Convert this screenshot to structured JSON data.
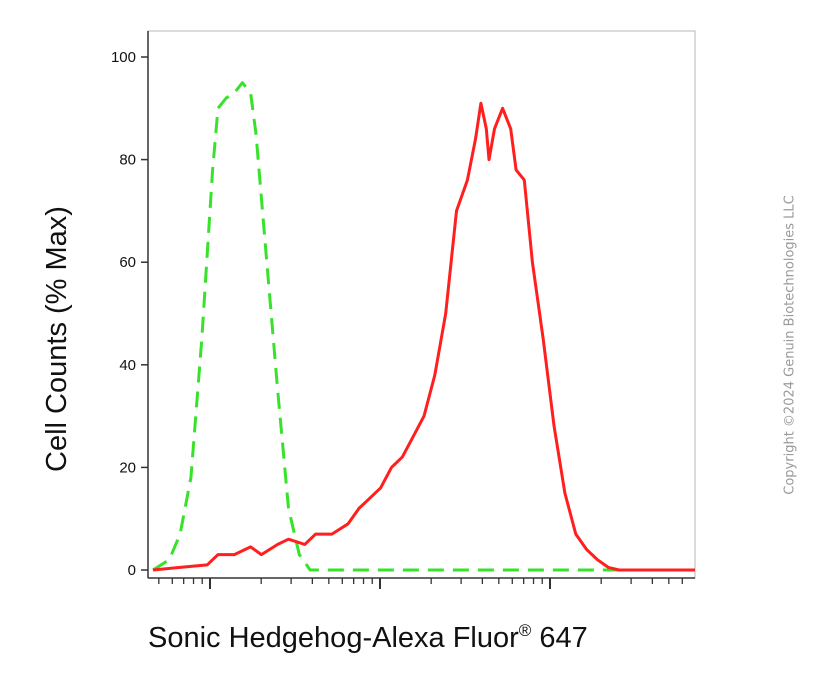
{
  "chart_data": {
    "type": "line",
    "title": "",
    "xlabel": "Sonic Hedgehog-Alexa Fluor",
    "xlabel_mark": "®",
    "xlabel_suffix": " 647",
    "ylabel": "Cell Counts (% Max)",
    "ylim": [
      0,
      100
    ],
    "yticks": [
      0,
      20,
      40,
      60,
      80,
      100
    ],
    "xscale": "log",
    "x_tick_labels": [],
    "grid": false,
    "series": [
      {
        "color": "#39e22a",
        "style": "dashed",
        "points": [
          [
            0.0,
            0
          ],
          [
            0.03,
            2
          ],
          [
            0.05,
            7
          ],
          [
            0.07,
            18
          ],
          [
            0.09,
            45
          ],
          [
            0.11,
            78
          ],
          [
            0.12,
            90
          ],
          [
            0.135,
            92
          ],
          [
            0.15,
            93
          ],
          [
            0.165,
            95
          ],
          [
            0.18,
            93
          ],
          [
            0.19,
            85
          ],
          [
            0.21,
            60
          ],
          [
            0.23,
            35
          ],
          [
            0.25,
            12
          ],
          [
            0.27,
            3
          ],
          [
            0.29,
            0
          ],
          [
            1.0,
            0
          ]
        ]
      },
      {
        "color": "#ff1f1f",
        "style": "solid",
        "points": [
          [
            0.0,
            0
          ],
          [
            0.05,
            0.5
          ],
          [
            0.1,
            1
          ],
          [
            0.12,
            3
          ],
          [
            0.15,
            3
          ],
          [
            0.18,
            4.5
          ],
          [
            0.2,
            3
          ],
          [
            0.23,
            5
          ],
          [
            0.25,
            6
          ],
          [
            0.28,
            5
          ],
          [
            0.3,
            7
          ],
          [
            0.33,
            7
          ],
          [
            0.36,
            9
          ],
          [
            0.38,
            12
          ],
          [
            0.4,
            14
          ],
          [
            0.42,
            16
          ],
          [
            0.44,
            20
          ],
          [
            0.46,
            22
          ],
          [
            0.48,
            26
          ],
          [
            0.5,
            30
          ],
          [
            0.52,
            38
          ],
          [
            0.54,
            50
          ],
          [
            0.56,
            70
          ],
          [
            0.58,
            76
          ],
          [
            0.595,
            84
          ],
          [
            0.605,
            91
          ],
          [
            0.615,
            86
          ],
          [
            0.62,
            80
          ],
          [
            0.63,
            86
          ],
          [
            0.645,
            90
          ],
          [
            0.66,
            86
          ],
          [
            0.67,
            78
          ],
          [
            0.685,
            76
          ],
          [
            0.7,
            60
          ],
          [
            0.72,
            45
          ],
          [
            0.74,
            28
          ],
          [
            0.76,
            15
          ],
          [
            0.78,
            7
          ],
          [
            0.8,
            4
          ],
          [
            0.82,
            2
          ],
          [
            0.84,
            0.5
          ],
          [
            0.86,
            0
          ],
          [
            1.0,
            0
          ]
        ]
      }
    ]
  },
  "watermark": "Copyright ©2024 Genuin Biotechnologies LLC"
}
